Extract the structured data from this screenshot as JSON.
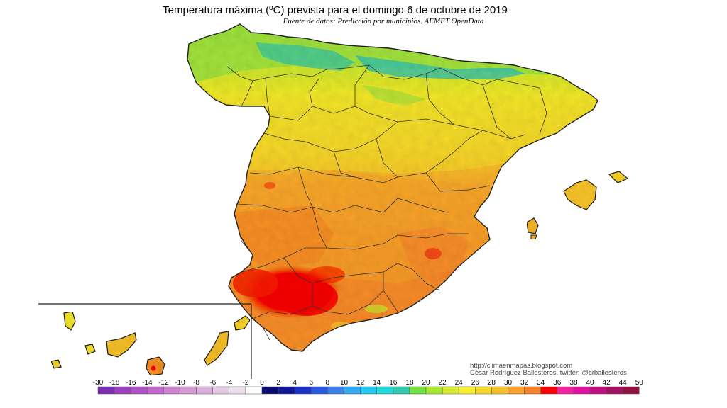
{
  "title": "Temperatura máxima (ºC) prevista para el domingo 6 de octubre de 2019",
  "subtitle": "Fuente de datos: Predicción por municipios. AEMET OpenData",
  "credits": {
    "url": "http://climaenmapas.blogspot.com",
    "author": "César Rodríguez Ballesteros, twitter: @crballesteros"
  },
  "colorbar": {
    "labels": [
      "-30",
      "-18",
      "-16",
      "-14",
      "-12",
      "-10",
      "-8",
      "-6",
      "-4",
      "-2",
      "0",
      "2",
      "4",
      "6",
      "8",
      "10",
      "12",
      "14",
      "16",
      "18",
      "20",
      "22",
      "24",
      "26",
      "28",
      "30",
      "32",
      "34",
      "36",
      "38",
      "40",
      "42",
      "44",
      "50"
    ],
    "colors": [
      "#7b2fb0",
      "#9a3fbf",
      "#b050c8",
      "#c064cc",
      "#cc80d0",
      "#d498d4",
      "#dcb0dc",
      "#e4c8e4",
      "#ece0ec",
      "#ffffff",
      "#0a0a70",
      "#101898",
      "#1830c8",
      "#2a58e0",
      "#3a80e8",
      "#30a8f0",
      "#20c8f0",
      "#20d8d8",
      "#30c8b0",
      "#70e040",
      "#a8e830",
      "#d8ec30",
      "#f8f030",
      "#f8d828",
      "#f8c028",
      "#f8a028",
      "#f88028",
      "#f80000",
      "#f020a0",
      "#e010a0",
      "#c01080",
      "#a01060",
      "#901040"
    ]
  },
  "legend_colors": {
    "coast_green": "#8ce04a",
    "north_teal": "#28c0b0",
    "plateau_yellow": "#f6e62a",
    "center_orange": "#f8b62a",
    "south_orange": "#f7892a",
    "hot_red": "#f80000"
  }
}
